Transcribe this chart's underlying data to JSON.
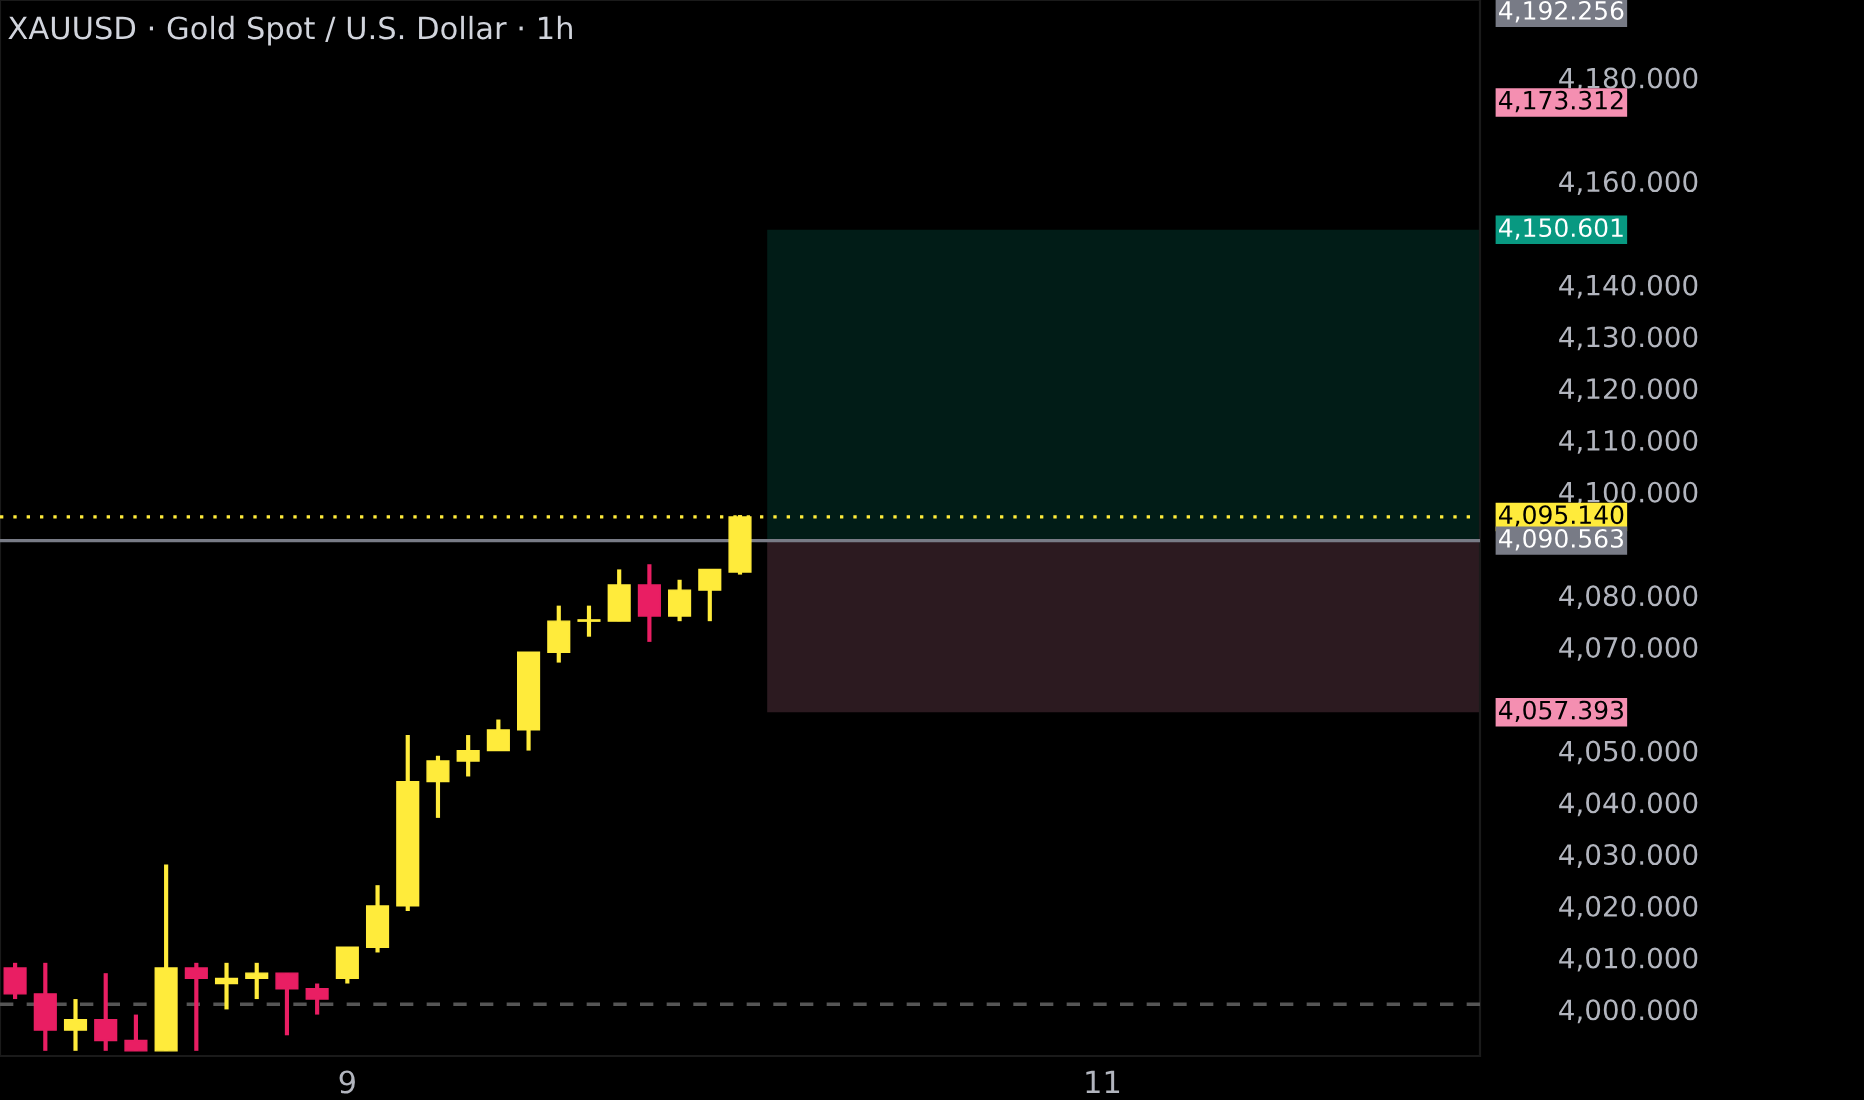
{
  "chart_data": {
    "type": "candlestick",
    "title": "XAUUSD · Gold Spot / U.S. Dollar · 1h",
    "categories": [
      null,
      null,
      null,
      null,
      null,
      null,
      null,
      null,
      null,
      null,
      null,
      "9",
      null,
      null,
      null,
      null,
      null,
      null,
      null,
      null,
      null,
      null,
      null,
      null,
      null,
      null,
      null,
      null,
      null,
      null,
      null,
      null,
      null,
      null,
      null,
      null,
      "11",
      null,
      null,
      null,
      null,
      null,
      null,
      null,
      null,
      null,
      null,
      null,
      null
    ],
    "ohlc": [
      [
        4008,
        4009,
        4002,
        4003
      ],
      [
        4003,
        4009,
        3992,
        3996
      ],
      [
        3996,
        4002,
        3992,
        3998
      ],
      [
        3998,
        4007,
        3992,
        3994
      ],
      [
        3994,
        3999,
        3992,
        3992
      ],
      [
        3992,
        4028,
        3992,
        4008
      ],
      [
        4008,
        4009,
        3992,
        4006
      ],
      [
        4005,
        4009,
        4000,
        4006
      ],
      [
        4006,
        4009,
        4002,
        4007
      ],
      [
        4007,
        4007,
        3995,
        4004
      ],
      [
        4004,
        4005,
        3999,
        4002
      ],
      [
        4006,
        4012,
        4005,
        4012
      ],
      [
        4012,
        4024,
        4011,
        4020
      ],
      [
        4020,
        4053,
        4019,
        4044
      ],
      [
        4044,
        4049,
        4037,
        4048
      ],
      [
        4048,
        4053,
        4045,
        4050
      ],
      [
        4050,
        4056,
        4050,
        4054
      ],
      [
        4054,
        4069,
        4050,
        4069
      ],
      [
        4069,
        4078,
        4067,
        4075
      ],
      [
        4075,
        4078,
        4072,
        4075
      ],
      [
        4075,
        4085,
        4075,
        4082
      ],
      [
        4082,
        4086,
        4071,
        4076
      ],
      [
        4076,
        4083,
        4075,
        4081
      ],
      [
        4081,
        4085,
        4075,
        4085
      ],
      [
        4084.5,
        4095.5,
        4084,
        4095.14
      ],
      null,
      null,
      null,
      null,
      null,
      null,
      null,
      null,
      null,
      null,
      null,
      null,
      null,
      null,
      null,
      null,
      null,
      null,
      null,
      null,
      null,
      null,
      null,
      null
    ],
    "colors": [
      "#e91e63",
      "#e91e63",
      "#ffeb3b",
      "#e91e63",
      "#e91e63",
      "#ffeb3b",
      "#e91e63",
      "#ffeb3b",
      "#ffeb3b",
      "#e91e63",
      "#e91e63",
      "#ffeb3b",
      "#ffeb3b",
      "#ffeb3b",
      "#ffeb3b",
      "#ffeb3b",
      "#ffeb3b",
      "#ffeb3b",
      "#ffeb3b",
      "#ffeb3b",
      "#ffeb3b",
      "#e91e63",
      "#ffeb3b",
      "#ffeb3b",
      "#ffeb3b",
      null,
      null,
      null,
      null,
      null,
      null,
      null,
      null,
      null,
      null,
      null,
      null,
      null,
      null,
      null,
      null,
      null,
      null,
      null,
      null,
      null,
      null,
      null,
      null
    ],
    "ylim": [
      3991,
      4195
    ],
    "yticks": [
      {
        "value": 4000,
        "label": "4,000.000"
      },
      {
        "value": 4010,
        "label": "4,010.000"
      },
      {
        "value": 4020,
        "label": "4,020.000"
      },
      {
        "value": 4030,
        "label": "4,030.000"
      },
      {
        "value": 4040,
        "label": "4,040.000"
      },
      {
        "value": 4050,
        "label": "4,050.000"
      },
      {
        "value": 4070,
        "label": "4,070.000"
      },
      {
        "value": 4080,
        "label": "4,080.000"
      },
      {
        "value": 4100,
        "label": "4,100.000"
      },
      {
        "value": 4110,
        "label": "4,110.000"
      },
      {
        "value": 4120,
        "label": "4,120.000"
      },
      {
        "value": 4130,
        "label": "4,130.000"
      },
      {
        "value": 4140,
        "label": "4,140.000"
      },
      {
        "value": 4160,
        "label": "4,160.000"
      },
      {
        "value": 4180,
        "label": "4,180.000"
      }
    ],
    "bands": [
      {
        "axis": "y",
        "from": 4090.563,
        "to": 4150.601,
        "label": "4,150.601",
        "color": "#089981"
      },
      {
        "axis": "y",
        "from": 4057.393,
        "to": 4090.563,
        "label": "4,057.393",
        "color": "#f48fb1"
      }
    ],
    "ref_lines": [
      {
        "axis": "y",
        "value": 4001,
        "color": "#555555",
        "line_style": "dashed"
      },
      {
        "axis": "y",
        "value": 4095.14,
        "label": "4,095.140",
        "color": "#ffeb3b",
        "line_style": "dotted"
      },
      {
        "axis": "y",
        "value": 4090.563,
        "label": "4,090.563",
        "color": "#787b86",
        "line_style": "solid"
      }
    ],
    "annotations": [
      "4,192.256",
      "4,173.312"
    ],
    "grid": false
  }
}
